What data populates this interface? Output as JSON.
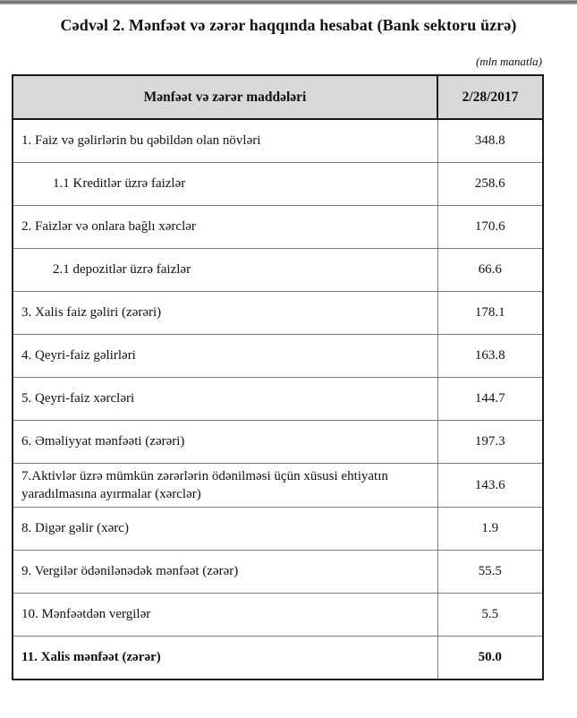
{
  "page": {
    "title": "Cədvəl 2. Mənfəət və zərər haqqında hesabat (Bank sektoru üzrə)",
    "unit_note": "(mln manatla)"
  },
  "colors": {
    "header_bg": "#d9d9d9",
    "outer_border": "#1a1a1a",
    "inner_border": "#7e7e7e",
    "top_bar": "#7d7d7d"
  },
  "table": {
    "columns": [
      "Mənfəət və zərər maddələri",
      "2/28/2017"
    ],
    "rows": [
      {
        "label": "1. Faiz və gəlirlərin bu qəbildən olan növləri",
        "value": "348.8",
        "indent": 0,
        "bold": false
      },
      {
        "label": "1.1 Kreditlər üzrə faizlər",
        "value": "258.6",
        "indent": 1,
        "bold": false
      },
      {
        "label": "2. Faizlər və onlara bağlı xərclər",
        "value": "170.6",
        "indent": 0,
        "bold": false
      },
      {
        "label": "2.1 depozitlər üzrə faizlər",
        "value": "66.6",
        "indent": 1,
        "bold": false
      },
      {
        "label": "3. Xalis faiz gəliri (zərəri)",
        "value": "178.1",
        "indent": 0,
        "bold": false
      },
      {
        "label": "4. Qeyri-faiz gəlirləri",
        "value": "163.8",
        "indent": 0,
        "bold": false
      },
      {
        "label": "5. Qeyri-faiz xərcləri",
        "value": "144.7",
        "indent": 0,
        "bold": false
      },
      {
        "label": "6. Əməliyyat mənfəəti (zərəri)",
        "value": "197.3",
        "indent": 0,
        "bold": false
      },
      {
        "label": "7.Aktivlər üzrə mümkün zərərlərin ödənilməsi üçün xüsusi ehtiyatın yaradılmasına ayırmalar (xərclər)",
        "value": "143.6",
        "indent": 0,
        "bold": false
      },
      {
        "label": "8. Digər gəlir (xərc)",
        "value": "1.9",
        "indent": 0,
        "bold": false
      },
      {
        "label": "9. Vergilər ödənilənədək mənfəət (zərər)",
        "value": "55.5",
        "indent": 0,
        "bold": false
      },
      {
        "label": "10. Mənfəətdən vergilər",
        "value": "5.5",
        "indent": 0,
        "bold": false
      },
      {
        "label": "11. Xalis mənfəət (zərər)",
        "value": "50.0",
        "indent": 0,
        "bold": true
      }
    ]
  }
}
